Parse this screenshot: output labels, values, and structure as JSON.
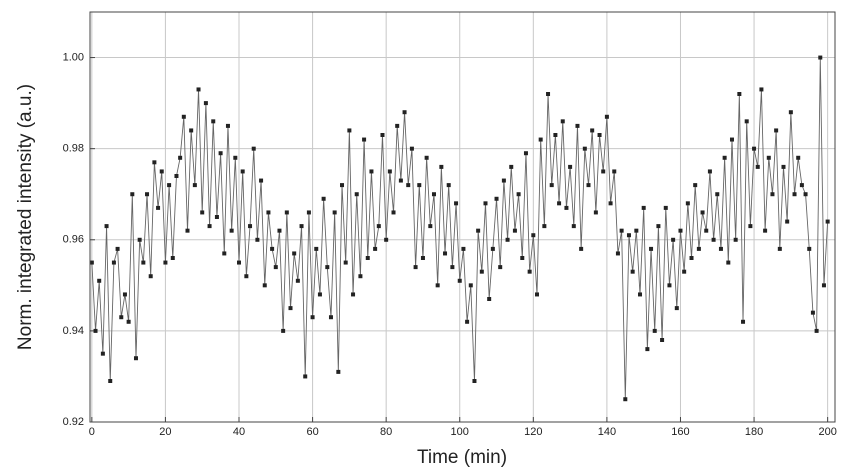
{
  "chart_data": {
    "type": "line",
    "xlabel": "Time (min)",
    "ylabel": "Norm. integrated intensity (a.u.)",
    "color": "#222222",
    "grid": true,
    "xlim": [
      -0.5,
      202
    ],
    "xticks": [
      0,
      20,
      40,
      60,
      80,
      100,
      120,
      140,
      160,
      180,
      200
    ],
    "ylim": [
      0.92,
      1.01
    ],
    "yticks": [
      0.92,
      0.94,
      0.96,
      0.98,
      {
        "value": 1,
        "label": "1.00"
      }
    ],
    "x": [
      0,
      1,
      2,
      3,
      4,
      5,
      6,
      7,
      8,
      9,
      10,
      11,
      12,
      13,
      14,
      15,
      16,
      17,
      18,
      19,
      20,
      21,
      22,
      23,
      24,
      25,
      26,
      27,
      28,
      29,
      30,
      31,
      32,
      33,
      34,
      35,
      36,
      37,
      38,
      39,
      40,
      41,
      42,
      43,
      44,
      45,
      46,
      47,
      48,
      49,
      50,
      51,
      52,
      53,
      54,
      55,
      56,
      57,
      58,
      59,
      60,
      61,
      62,
      63,
      64,
      65,
      66,
      67,
      68,
      69,
      70,
      71,
      72,
      73,
      74,
      75,
      76,
      77,
      78,
      79,
      80,
      81,
      82,
      83,
      84,
      85,
      86,
      87,
      88,
      89,
      90,
      91,
      92,
      93,
      94,
      95,
      96,
      97,
      98,
      99,
      100,
      101,
      102,
      103,
      104,
      105,
      106,
      107,
      108,
      109,
      110,
      111,
      112,
      113,
      114,
      115,
      116,
      117,
      118,
      119,
      120,
      121,
      122,
      123,
      124,
      125,
      126,
      127,
      128,
      129,
      130,
      131,
      132,
      133,
      134,
      135,
      136,
      137,
      138,
      139,
      140,
      141,
      142,
      143,
      144,
      145,
      146,
      147,
      148,
      149,
      150,
      151,
      152,
      153,
      154,
      155,
      156,
      157,
      158,
      159,
      160,
      161,
      162,
      163,
      164,
      165,
      166,
      167,
      168,
      169,
      170,
      171,
      172,
      173,
      174,
      175,
      176,
      177,
      178,
      179,
      180,
      181,
      182,
      183,
      184,
      185,
      186,
      187,
      188,
      189,
      190,
      191,
      192,
      193,
      194,
      195,
      196,
      197,
      198,
      199,
      200
    ],
    "values": [
      0.955,
      0.94,
      0.951,
      0.935,
      0.963,
      0.929,
      0.955,
      0.958,
      0.943,
      0.948,
      0.942,
      0.97,
      0.934,
      0.96,
      0.955,
      0.97,
      0.952,
      0.977,
      0.967,
      0.975,
      0.955,
      0.972,
      0.956,
      0.974,
      0.978,
      0.987,
      0.962,
      0.984,
      0.972,
      0.993,
      0.966,
      0.99,
      0.963,
      0.986,
      0.965,
      0.979,
      0.957,
      0.985,
      0.962,
      0.978,
      0.955,
      0.975,
      0.952,
      0.963,
      0.98,
      0.96,
      0.973,
      0.95,
      0.966,
      0.958,
      0.954,
      0.962,
      0.94,
      0.966,
      0.945,
      0.957,
      0.951,
      0.963,
      0.93,
      0.966,
      0.943,
      0.958,
      0.948,
      0.969,
      0.954,
      0.943,
      0.966,
      0.931,
      0.972,
      0.955,
      0.984,
      0.948,
      0.97,
      0.952,
      0.982,
      0.956,
      0.975,
      0.958,
      0.963,
      0.983,
      0.96,
      0.975,
      0.966,
      0.985,
      0.973,
      0.988,
      0.972,
      0.98,
      0.954,
      0.972,
      0.956,
      0.978,
      0.963,
      0.97,
      0.95,
      0.976,
      0.957,
      0.972,
      0.954,
      0.968,
      0.951,
      0.958,
      0.942,
      0.95,
      0.929,
      0.962,
      0.953,
      0.968,
      0.947,
      0.958,
      0.969,
      0.954,
      0.973,
      0.96,
      0.976,
      0.962,
      0.97,
      0.956,
      0.979,
      0.953,
      0.961,
      0.948,
      0.982,
      0.963,
      0.992,
      0.972,
      0.983,
      0.968,
      0.986,
      0.967,
      0.976,
      0.963,
      0.985,
      0.958,
      0.98,
      0.972,
      0.984,
      0.966,
      0.983,
      0.975,
      0.987,
      0.968,
      0.975,
      0.957,
      0.962,
      0.925,
      0.961,
      0.953,
      0.962,
      0.948,
      0.967,
      0.936,
      0.958,
      0.94,
      0.963,
      0.938,
      0.967,
      0.95,
      0.96,
      0.945,
      0.962,
      0.953,
      0.968,
      0.956,
      0.972,
      0.958,
      0.966,
      0.962,
      0.975,
      0.96,
      0.97,
      0.958,
      0.978,
      0.955,
      0.982,
      0.96,
      0.992,
      0.942,
      0.986,
      0.963,
      0.98,
      0.976,
      0.993,
      0.962,
      0.978,
      0.97,
      0.984,
      0.958,
      0.976,
      0.964,
      0.988,
      0.97,
      0.978,
      0.972,
      0.97,
      0.958,
      0.944,
      0.94,
      1.0,
      0.95,
      0.964
    ]
  }
}
